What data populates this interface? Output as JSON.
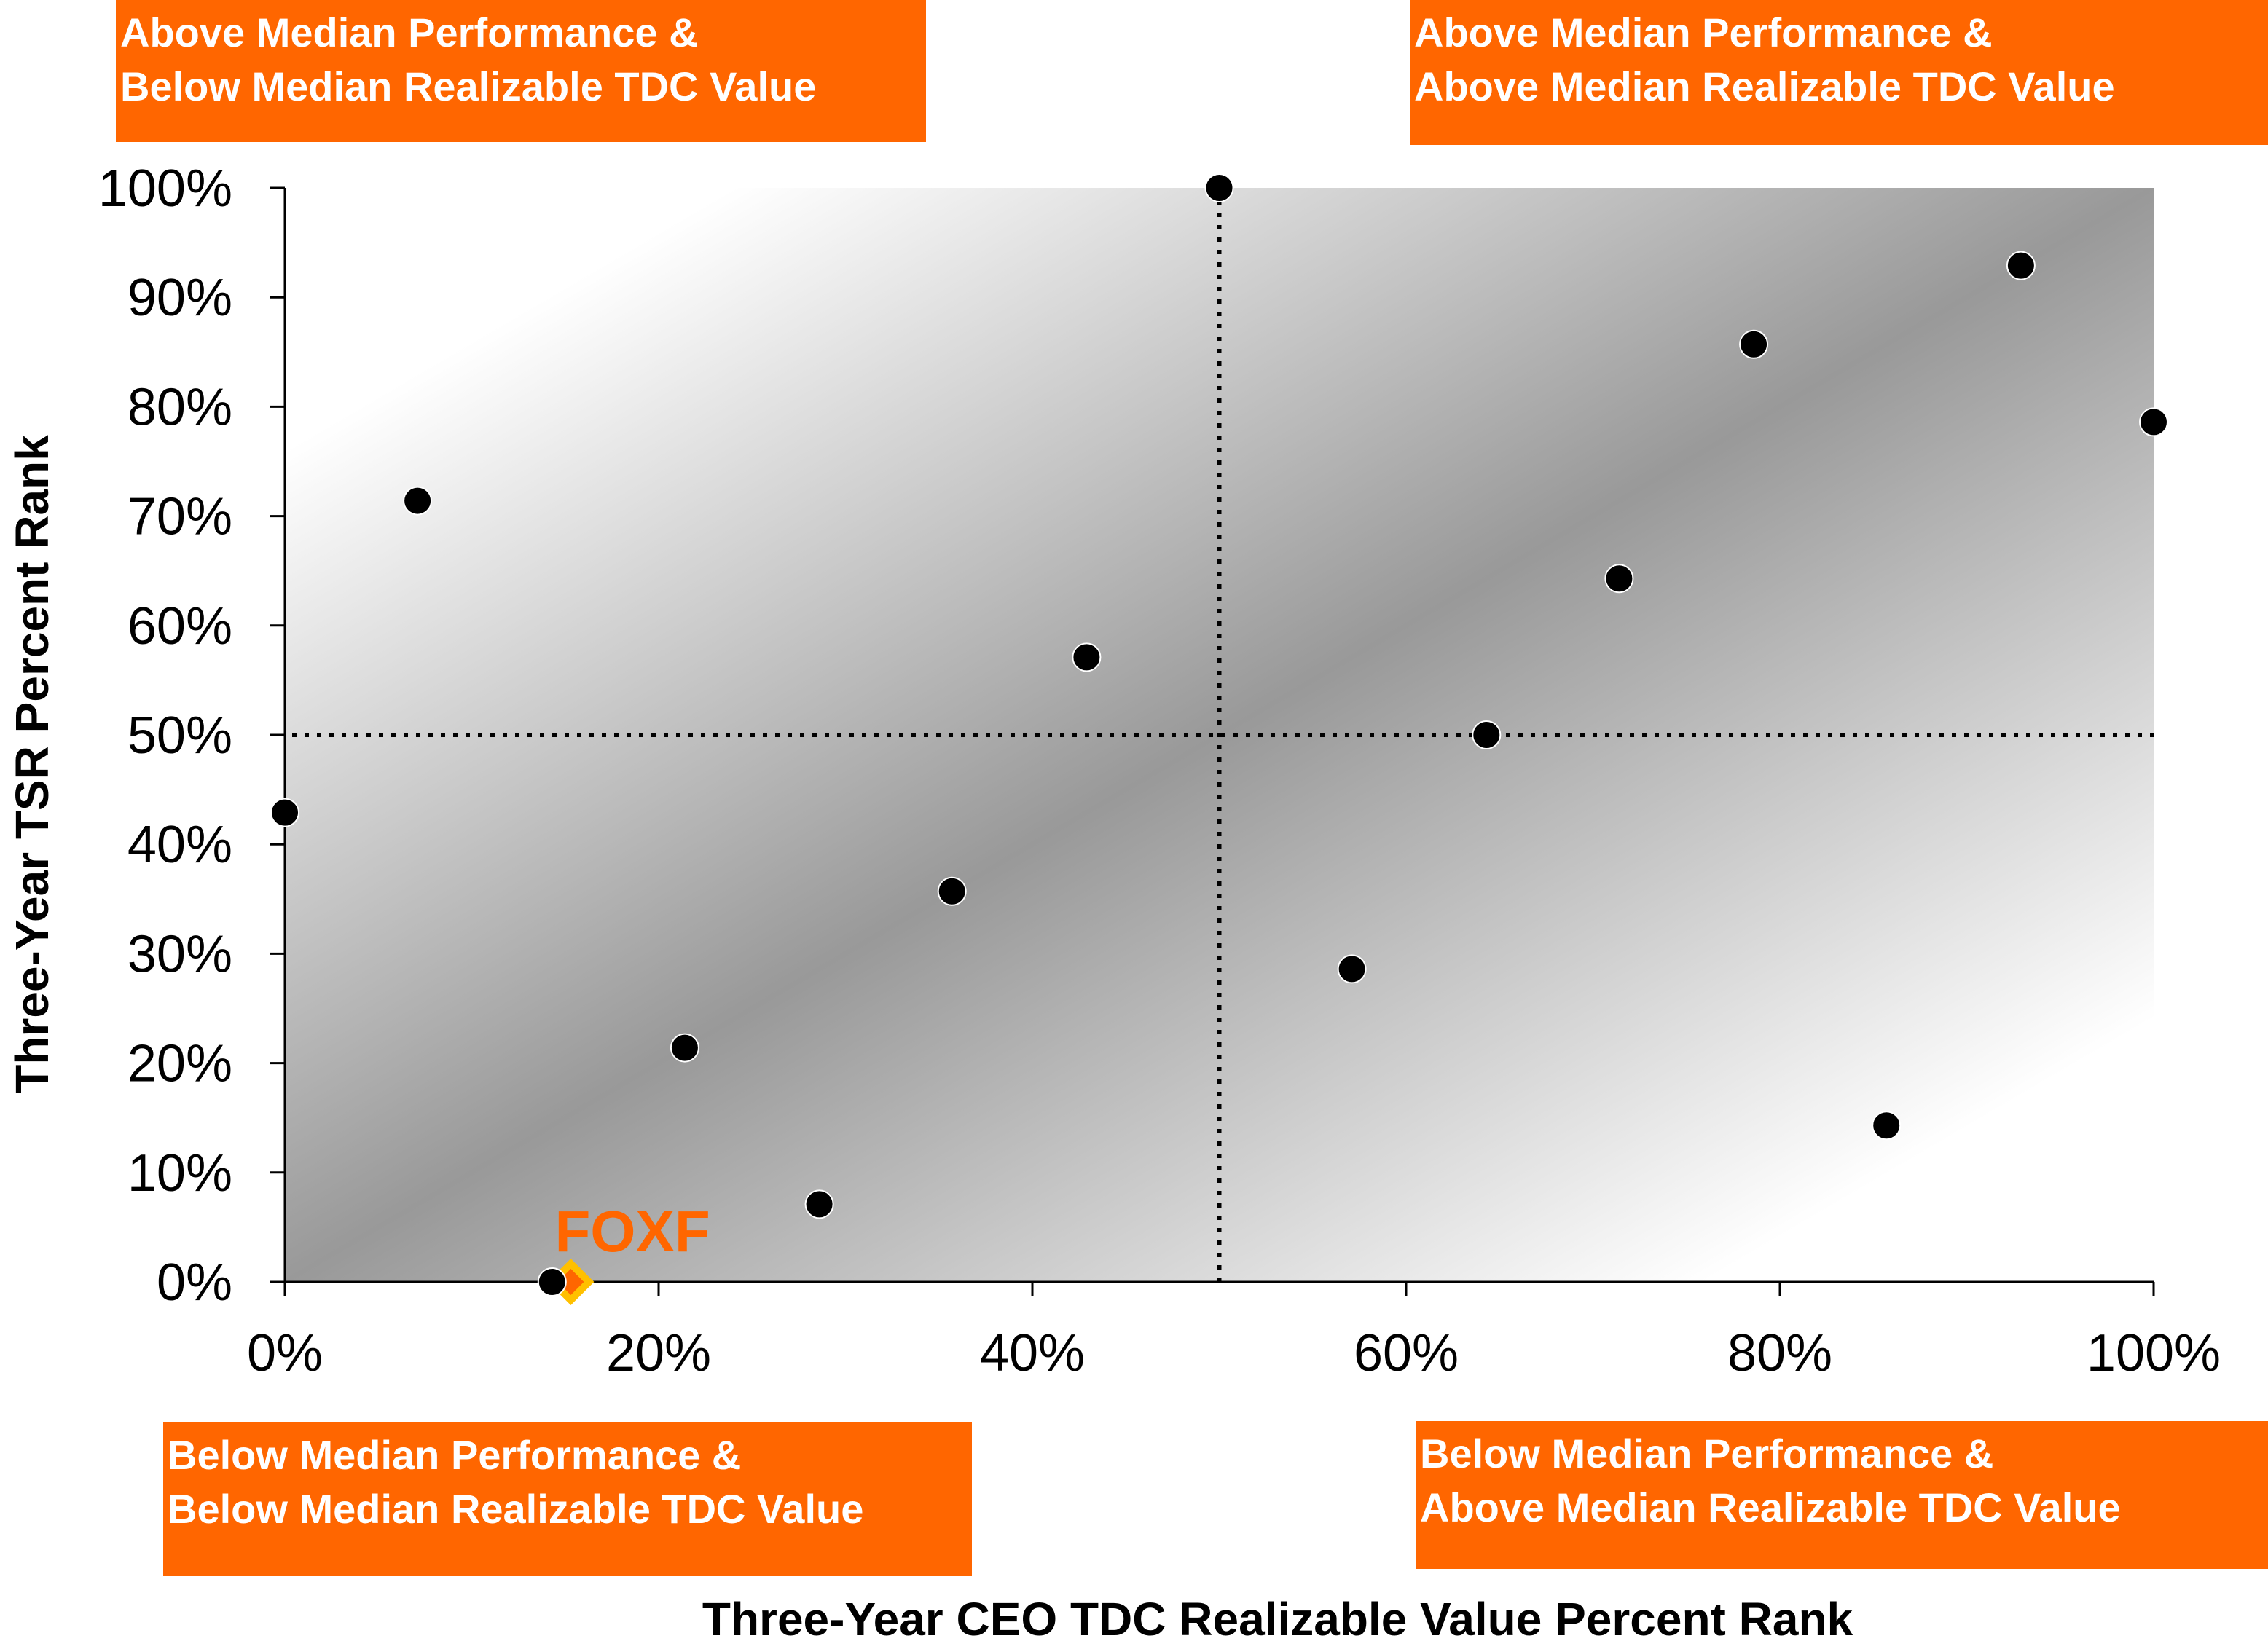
{
  "chart_data": {
    "type": "scatter",
    "xlabel": "Three-Year CEO TDC Realizable Value Percent Rank",
    "ylabel": "Three-Year TSR Percent Rank",
    "xlim": [
      0,
      100
    ],
    "ylim": [
      0,
      100
    ],
    "x_ticks": [
      "0%",
      "20%",
      "40%",
      "60%",
      "80%",
      "100%"
    ],
    "y_ticks": [
      "0%",
      "10%",
      "20%",
      "30%",
      "40%",
      "50%",
      "60%",
      "70%",
      "80%",
      "90%",
      "100%"
    ],
    "grid": false,
    "reference_lines": {
      "x": 50,
      "y": 50,
      "style": "dotted"
    },
    "peers": {
      "color": "#000000",
      "points": [
        [
          0,
          42.9
        ],
        [
          7.1,
          71.4
        ],
        [
          14.3,
          0
        ],
        [
          21.4,
          21.4
        ],
        [
          28.6,
          7.1
        ],
        [
          35.7,
          35.7
        ],
        [
          42.9,
          57.1
        ],
        [
          50,
          100
        ],
        [
          57.1,
          28.6
        ],
        [
          64.3,
          50
        ],
        [
          71.4,
          64.3
        ],
        [
          78.6,
          85.7
        ],
        [
          85.7,
          14.3
        ],
        [
          92.9,
          92.9
        ],
        [
          100,
          78.6
        ]
      ]
    },
    "highlight": {
      "label": "FOXF",
      "x": 15.3,
      "y": 0,
      "color": "#ff6600",
      "border_color": "#ffc000"
    },
    "quadrants": {
      "top_left": "Above Median Performance &\nBelow Median Realizable TDC Value",
      "top_right": "Above Median Performance &\nAbove Median Realizable TDC Value",
      "bottom_left": "Below Median Performance &\nBelow Median Realizable TDC Value",
      "bottom_right": "Below Median Performance &\nAbove Median Realizable TDC Value"
    },
    "accent_color": "#ff6600"
  }
}
